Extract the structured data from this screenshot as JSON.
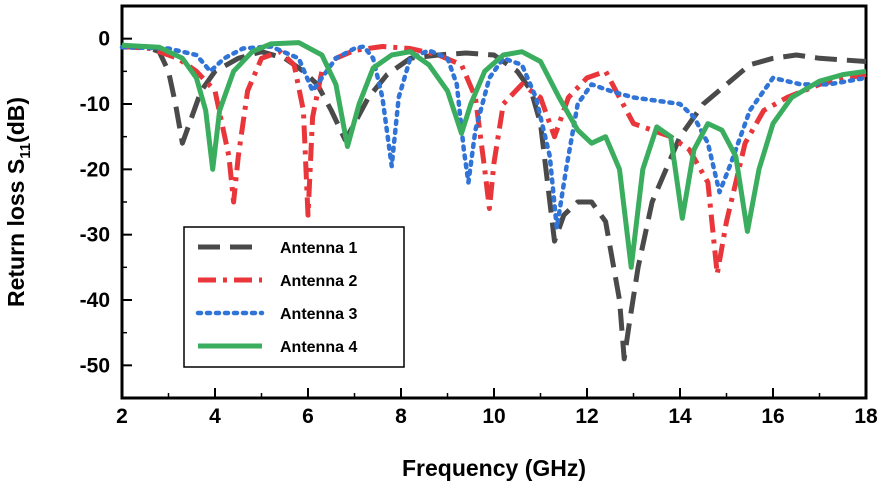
{
  "chart_data": {
    "type": "line",
    "title": "",
    "xlabel": "Frequency (GHz)",
    "ylabel_main": "Return loss S",
    "ylabel_sub": "11",
    "ylabel_unit": "(dB)",
    "xlim": [
      2,
      18
    ],
    "ylim": [
      -55,
      5
    ],
    "xticks": [
      2,
      4,
      6,
      8,
      10,
      12,
      14,
      16,
      18
    ],
    "yticks": [
      0,
      -10,
      -20,
      -30,
      -40,
      -50
    ],
    "grid": false,
    "legend_position": "bottom-left",
    "series": [
      {
        "name": "Antenna 1",
        "color": "#4a4a4a",
        "style": "dash",
        "points": [
          [
            2,
            -1.3
          ],
          [
            2.5,
            -1.2
          ],
          [
            2.8,
            -2
          ],
          [
            3.0,
            -5
          ],
          [
            3.15,
            -10
          ],
          [
            3.3,
            -16
          ],
          [
            3.45,
            -13
          ],
          [
            3.7,
            -8
          ],
          [
            4.0,
            -5
          ],
          [
            4.5,
            -3
          ],
          [
            5,
            -2
          ],
          [
            5.5,
            -3
          ],
          [
            5.9,
            -5
          ],
          [
            6.2,
            -7
          ],
          [
            6.5,
            -11
          ],
          [
            6.8,
            -15.5
          ],
          [
            7.0,
            -13
          ],
          [
            7.3,
            -9
          ],
          [
            7.7,
            -5.5
          ],
          [
            8.2,
            -3
          ],
          [
            8.8,
            -2.5
          ],
          [
            9.4,
            -2.2
          ],
          [
            10.0,
            -2.5
          ],
          [
            10.5,
            -5
          ],
          [
            10.8,
            -8
          ],
          [
            11.0,
            -13
          ],
          [
            11.3,
            -31
          ],
          [
            11.5,
            -27
          ],
          [
            11.8,
            -25
          ],
          [
            12.1,
            -25
          ],
          [
            12.4,
            -28
          ],
          [
            12.7,
            -40
          ],
          [
            12.8,
            -49
          ],
          [
            12.9,
            -44
          ],
          [
            13.1,
            -35
          ],
          [
            13.4,
            -25
          ],
          [
            14.0,
            -15
          ],
          [
            14.5,
            -10
          ],
          [
            15.0,
            -7
          ],
          [
            15.5,
            -4
          ],
          [
            16,
            -3
          ],
          [
            16.5,
            -2.5
          ],
          [
            17,
            -3
          ],
          [
            18,
            -3.5
          ]
        ]
      },
      {
        "name": "Antenna 2",
        "color": "#e8363a",
        "style": "dash-dot",
        "points": [
          [
            2,
            -1.2
          ],
          [
            2.6,
            -1.5
          ],
          [
            3.2,
            -3
          ],
          [
            3.6,
            -5
          ],
          [
            4.0,
            -8
          ],
          [
            4.3,
            -18
          ],
          [
            4.4,
            -25
          ],
          [
            4.5,
            -18
          ],
          [
            4.7,
            -8
          ],
          [
            5.0,
            -3
          ],
          [
            5.4,
            -2
          ],
          [
            5.7,
            -4
          ],
          [
            5.9,
            -11
          ],
          [
            6.0,
            -27
          ],
          [
            6.1,
            -12
          ],
          [
            6.3,
            -5
          ],
          [
            6.6,
            -3
          ],
          [
            7.0,
            -1.8
          ],
          [
            7.6,
            -1.2
          ],
          [
            8.2,
            -1.5
          ],
          [
            8.8,
            -2.5
          ],
          [
            9.3,
            -4
          ],
          [
            9.6,
            -9
          ],
          [
            9.8,
            -20
          ],
          [
            9.9,
            -26
          ],
          [
            10.0,
            -19
          ],
          [
            10.2,
            -10
          ],
          [
            10.6,
            -7
          ],
          [
            11.0,
            -9
          ],
          [
            11.3,
            -15
          ],
          [
            11.6,
            -9
          ],
          [
            12.0,
            -6
          ],
          [
            12.4,
            -5
          ],
          [
            12.7,
            -9
          ],
          [
            13.0,
            -13
          ],
          [
            13.4,
            -14
          ],
          [
            13.8,
            -15
          ],
          [
            14.2,
            -17
          ],
          [
            14.6,
            -22
          ],
          [
            14.8,
            -36
          ],
          [
            15.0,
            -28
          ],
          [
            15.4,
            -16
          ],
          [
            15.8,
            -11
          ],
          [
            16.3,
            -9
          ],
          [
            17.0,
            -7
          ],
          [
            17.6,
            -6
          ],
          [
            18,
            -5.5
          ]
        ]
      },
      {
        "name": "Antenna 3",
        "color": "#2f74d6",
        "style": "dot",
        "points": [
          [
            2,
            -1.3
          ],
          [
            3,
            -1.5
          ],
          [
            3.6,
            -2.5
          ],
          [
            3.9,
            -5
          ],
          [
            4.2,
            -3
          ],
          [
            4.6,
            -1.5
          ],
          [
            5.2,
            -1.2
          ],
          [
            5.8,
            -3
          ],
          [
            6.1,
            -8
          ],
          [
            6.3,
            -6
          ],
          [
            6.6,
            -3
          ],
          [
            7.0,
            -1.5
          ],
          [
            7.2,
            -1.2
          ],
          [
            7.4,
            -3
          ],
          [
            7.6,
            -9
          ],
          [
            7.8,
            -19.5
          ],
          [
            7.95,
            -9
          ],
          [
            8.2,
            -3
          ],
          [
            8.6,
            -1.8
          ],
          [
            9.0,
            -3
          ],
          [
            9.2,
            -7
          ],
          [
            9.35,
            -17
          ],
          [
            9.45,
            -22
          ],
          [
            9.6,
            -14
          ],
          [
            9.9,
            -6
          ],
          [
            10.2,
            -3
          ],
          [
            10.6,
            -4
          ],
          [
            10.9,
            -9
          ],
          [
            11.2,
            -18
          ],
          [
            11.35,
            -29
          ],
          [
            11.55,
            -20
          ],
          [
            11.8,
            -10
          ],
          [
            12.1,
            -7
          ],
          [
            12.5,
            -8
          ],
          [
            13.0,
            -9
          ],
          [
            13.5,
            -9.5
          ],
          [
            14.0,
            -10
          ],
          [
            14.3,
            -12
          ],
          [
            14.6,
            -16
          ],
          [
            14.85,
            -23.5
          ],
          [
            15.1,
            -19
          ],
          [
            15.5,
            -11
          ],
          [
            16.0,
            -6
          ],
          [
            16.6,
            -7
          ],
          [
            17.2,
            -7
          ],
          [
            18,
            -6
          ]
        ]
      },
      {
        "name": "Antenna 4",
        "color": "#3aae5e",
        "style": "solid",
        "points": [
          [
            2,
            -1.0
          ],
          [
            2.8,
            -1.3
          ],
          [
            3.3,
            -3
          ],
          [
            3.6,
            -6
          ],
          [
            3.8,
            -11
          ],
          [
            3.95,
            -20
          ],
          [
            4.1,
            -11
          ],
          [
            4.4,
            -5
          ],
          [
            4.8,
            -2
          ],
          [
            5.2,
            -0.8
          ],
          [
            5.8,
            -0.6
          ],
          [
            6.3,
            -2.5
          ],
          [
            6.6,
            -7
          ],
          [
            6.85,
            -16.5
          ],
          [
            7.1,
            -10
          ],
          [
            7.4,
            -4.5
          ],
          [
            7.8,
            -2.5
          ],
          [
            8.2,
            -2
          ],
          [
            8.6,
            -4
          ],
          [
            9.0,
            -8
          ],
          [
            9.3,
            -14.5
          ],
          [
            9.5,
            -10
          ],
          [
            9.8,
            -5
          ],
          [
            10.2,
            -2.5
          ],
          [
            10.6,
            -2
          ],
          [
            11.0,
            -3.5
          ],
          [
            11.4,
            -9
          ],
          [
            11.8,
            -14
          ],
          [
            12.1,
            -16
          ],
          [
            12.4,
            -15
          ],
          [
            12.7,
            -20
          ],
          [
            12.95,
            -35
          ],
          [
            13.2,
            -20
          ],
          [
            13.5,
            -13.5
          ],
          [
            13.8,
            -15
          ],
          [
            14.05,
            -27.5
          ],
          [
            14.3,
            -17
          ],
          [
            14.6,
            -13
          ],
          [
            14.9,
            -14
          ],
          [
            15.2,
            -18
          ],
          [
            15.45,
            -29.5
          ],
          [
            15.7,
            -20
          ],
          [
            16.0,
            -13
          ],
          [
            16.4,
            -9
          ],
          [
            17.0,
            -6.5
          ],
          [
            17.5,
            -5.5
          ],
          [
            18,
            -5
          ]
        ]
      }
    ]
  }
}
